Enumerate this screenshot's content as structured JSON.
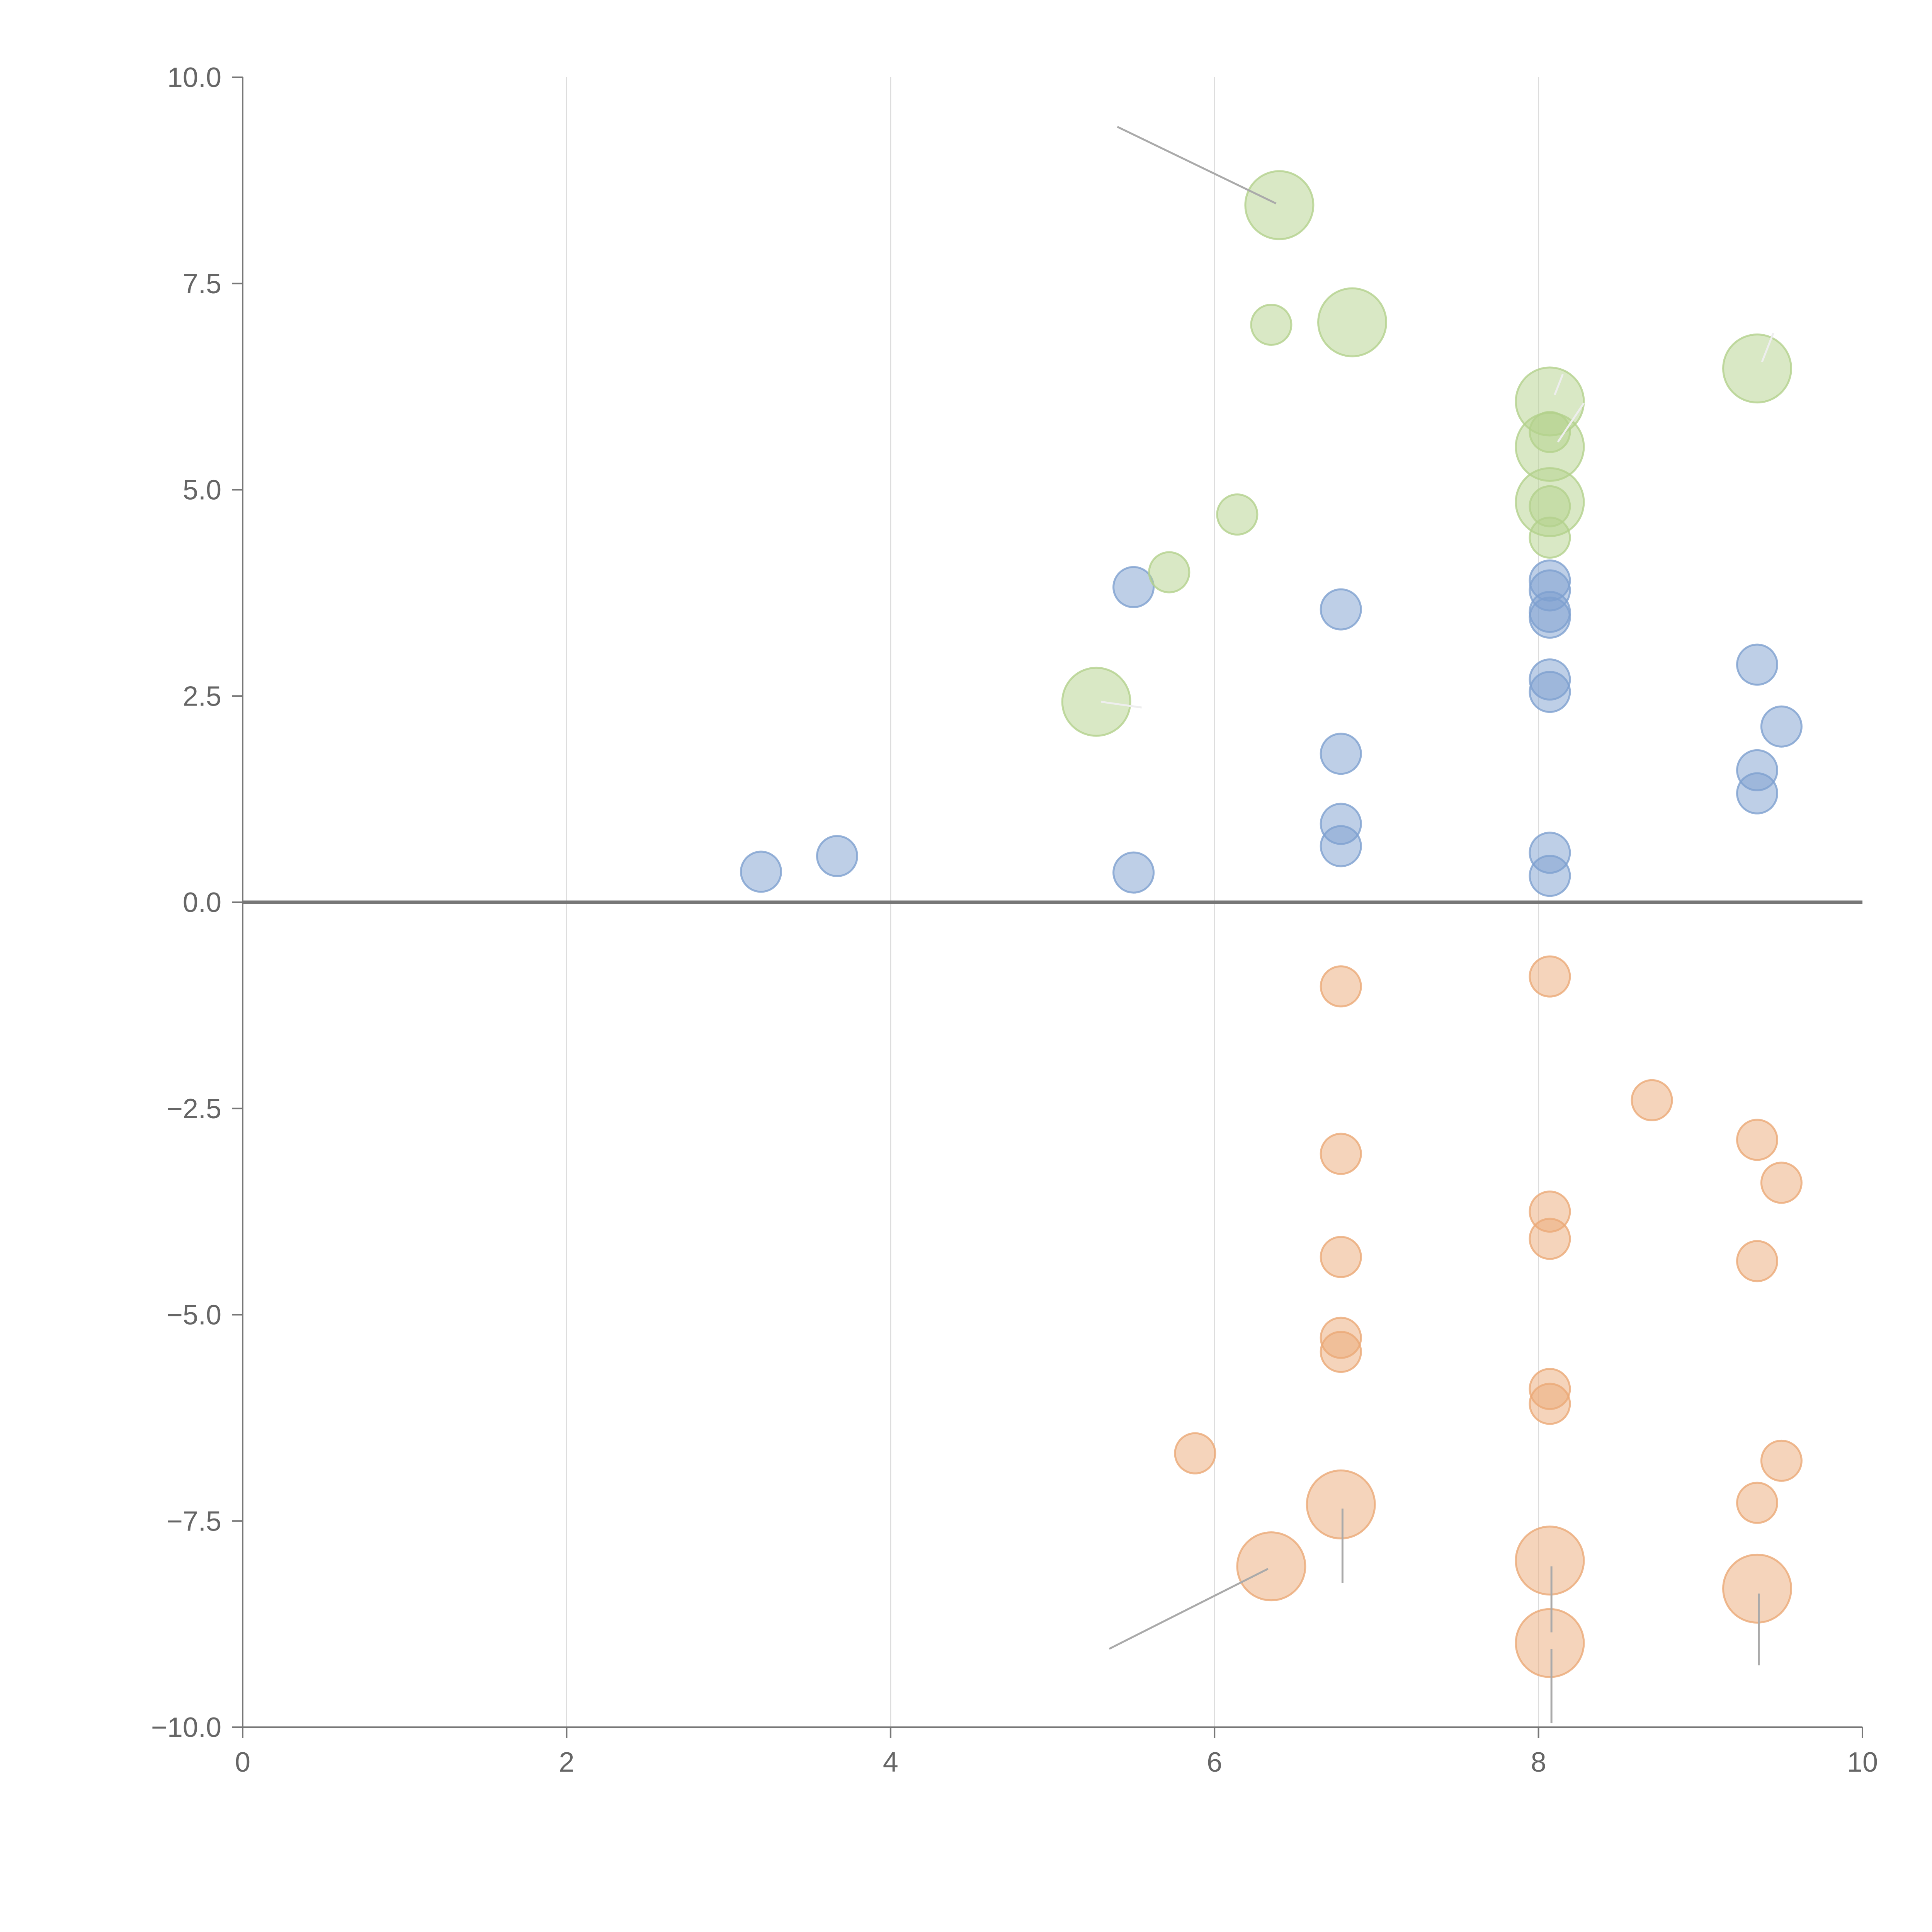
{
  "chart_data": {
    "type": "scatter",
    "title": "",
    "xlabel": "",
    "ylabel": "",
    "xlim": [
      0,
      10
    ],
    "ylim": [
      -10,
      10
    ],
    "grid": {
      "vertical": true,
      "horizontal": false
    },
    "x_ticks": [
      0,
      2,
      4,
      6,
      8,
      10
    ],
    "y_ticks": [
      10.0,
      7.5,
      5.0,
      2.5,
      0.0,
      -2.5,
      -5.0,
      -7.5,
      -10.0
    ],
    "x_tick_labels": [
      "0",
      "2",
      "4",
      "6",
      "8",
      "10"
    ],
    "y_tick_labels": [
      "10.0",
      "7.5",
      "5.0",
      "2.5",
      "0.0",
      "−2.5",
      "−5.0",
      "−7.5",
      "−10.0"
    ],
    "colors": {
      "blue": "#7ea0d0",
      "green": "#b3d18c",
      "orange": "#eba977"
    },
    "series": [
      {
        "color": "blue",
        "points": [
          {
            "x": 3.2,
            "y": 0.37,
            "s": 1
          },
          {
            "x": 3.67,
            "y": 0.56,
            "s": 1
          },
          {
            "x": 5.5,
            "y": 3.82,
            "s": 1
          },
          {
            "x": 5.5,
            "y": 0.36,
            "s": 1
          },
          {
            "x": 6.78,
            "y": 3.55,
            "s": 1
          },
          {
            "x": 6.78,
            "y": 1.8,
            "s": 1
          },
          {
            "x": 6.78,
            "y": 0.95,
            "s": 1
          },
          {
            "x": 6.78,
            "y": 0.68,
            "s": 1
          },
          {
            "x": 8.07,
            "y": 3.9,
            "s": 1
          },
          {
            "x": 8.07,
            "y": 3.78,
            "s": 1
          },
          {
            "x": 8.07,
            "y": 3.52,
            "s": 1
          },
          {
            "x": 8.07,
            "y": 3.45,
            "s": 1
          },
          {
            "x": 8.07,
            "y": 2.7,
            "s": 1
          },
          {
            "x": 8.07,
            "y": 2.55,
            "s": 1
          },
          {
            "x": 8.07,
            "y": 0.6,
            "s": 1
          },
          {
            "x": 8.07,
            "y": 0.32,
            "s": 1
          },
          {
            "x": 9.35,
            "y": 2.88,
            "s": 1
          },
          {
            "x": 9.35,
            "y": 1.6,
            "s": 1
          },
          {
            "x": 9.35,
            "y": 1.32,
            "s": 1
          },
          {
            "x": 9.5,
            "y": 2.13,
            "s": 1
          }
        ]
      },
      {
        "color": "green",
        "points": [
          {
            "x": 6.4,
            "y": 8.45,
            "s": 3
          },
          {
            "x": 6.35,
            "y": 7.0,
            "s": 1
          },
          {
            "x": 6.85,
            "y": 7.03,
            "s": 3
          },
          {
            "x": 8.07,
            "y": 6.07,
            "s": 3
          },
          {
            "x": 8.07,
            "y": 5.7,
            "s": 1
          },
          {
            "x": 8.07,
            "y": 5.52,
            "s": 3
          },
          {
            "x": 8.07,
            "y": 4.85,
            "s": 3
          },
          {
            "x": 8.07,
            "y": 4.8,
            "s": 1
          },
          {
            "x": 8.07,
            "y": 4.42,
            "s": 1
          },
          {
            "x": 9.35,
            "y": 6.47,
            "s": 3
          },
          {
            "x": 6.14,
            "y": 4.7,
            "s": 1
          },
          {
            "x": 5.72,
            "y": 4.0,
            "s": 1
          },
          {
            "x": 5.27,
            "y": 2.43,
            "s": 3
          }
        ]
      },
      {
        "color": "orange",
        "points": [
          {
            "x": 6.78,
            "y": -1.02,
            "s": 1
          },
          {
            "x": 8.07,
            "y": -0.9,
            "s": 1
          },
          {
            "x": 8.7,
            "y": -2.4,
            "s": 1
          },
          {
            "x": 9.35,
            "y": -2.88,
            "s": 1
          },
          {
            "x": 9.5,
            "y": -3.4,
            "s": 1
          },
          {
            "x": 6.78,
            "y": -3.05,
            "s": 1
          },
          {
            "x": 8.07,
            "y": -3.75,
            "s": 1
          },
          {
            "x": 8.07,
            "y": -4.08,
            "s": 1
          },
          {
            "x": 9.35,
            "y": -4.35,
            "s": 1
          },
          {
            "x": 6.78,
            "y": -4.3,
            "s": 1
          },
          {
            "x": 6.78,
            "y": -5.28,
            "s": 1
          },
          {
            "x": 6.78,
            "y": -5.45,
            "s": 1
          },
          {
            "x": 8.07,
            "y": -5.9,
            "s": 1
          },
          {
            "x": 8.07,
            "y": -6.08,
            "s": 1
          },
          {
            "x": 5.88,
            "y": -6.68,
            "s": 1
          },
          {
            "x": 9.5,
            "y": -6.77,
            "s": 1
          },
          {
            "x": 9.35,
            "y": -7.28,
            "s": 1
          },
          {
            "x": 6.78,
            "y": -7.3,
            "s": 3
          },
          {
            "x": 6.35,
            "y": -8.05,
            "s": 3
          },
          {
            "x": 8.07,
            "y": -7.98,
            "s": 3
          },
          {
            "x": 8.07,
            "y": -8.98,
            "s": 3
          },
          {
            "x": 9.35,
            "y": -8.32,
            "s": 3
          }
        ]
      }
    ],
    "annotation_lines": [
      {
        "from": [
          5.4,
          9.4
        ],
        "to": [
          6.38,
          8.47
        ],
        "tone": "gray"
      },
      {
        "from": [
          5.35,
          -9.05
        ],
        "to": [
          6.33,
          -8.08
        ],
        "tone": "gray"
      },
      {
        "from": [
          6.79,
          -7.35
        ],
        "to": [
          6.79,
          -8.25
        ],
        "tone": "gray"
      },
      {
        "from": [
          8.08,
          -8.05
        ],
        "to": [
          8.08,
          -8.85
        ],
        "tone": "gray"
      },
      {
        "from": [
          8.08,
          -9.05
        ],
        "to": [
          8.08,
          -9.95
        ],
        "tone": "gray"
      },
      {
        "from": [
          9.36,
          -8.38
        ],
        "to": [
          9.36,
          -9.25
        ],
        "tone": "gray"
      },
      {
        "from": [
          8.1,
          6.15
        ],
        "to": [
          8.15,
          6.4
        ],
        "tone": "light"
      },
      {
        "from": [
          8.12,
          5.58
        ],
        "to": [
          8.28,
          6.05
        ],
        "tone": "light"
      },
      {
        "from": [
          9.38,
          6.55
        ],
        "to": [
          9.45,
          6.9
        ],
        "tone": "light"
      },
      {
        "from": [
          5.3,
          2.43
        ],
        "to": [
          5.55,
          2.36
        ],
        "tone": "light"
      }
    ]
  }
}
